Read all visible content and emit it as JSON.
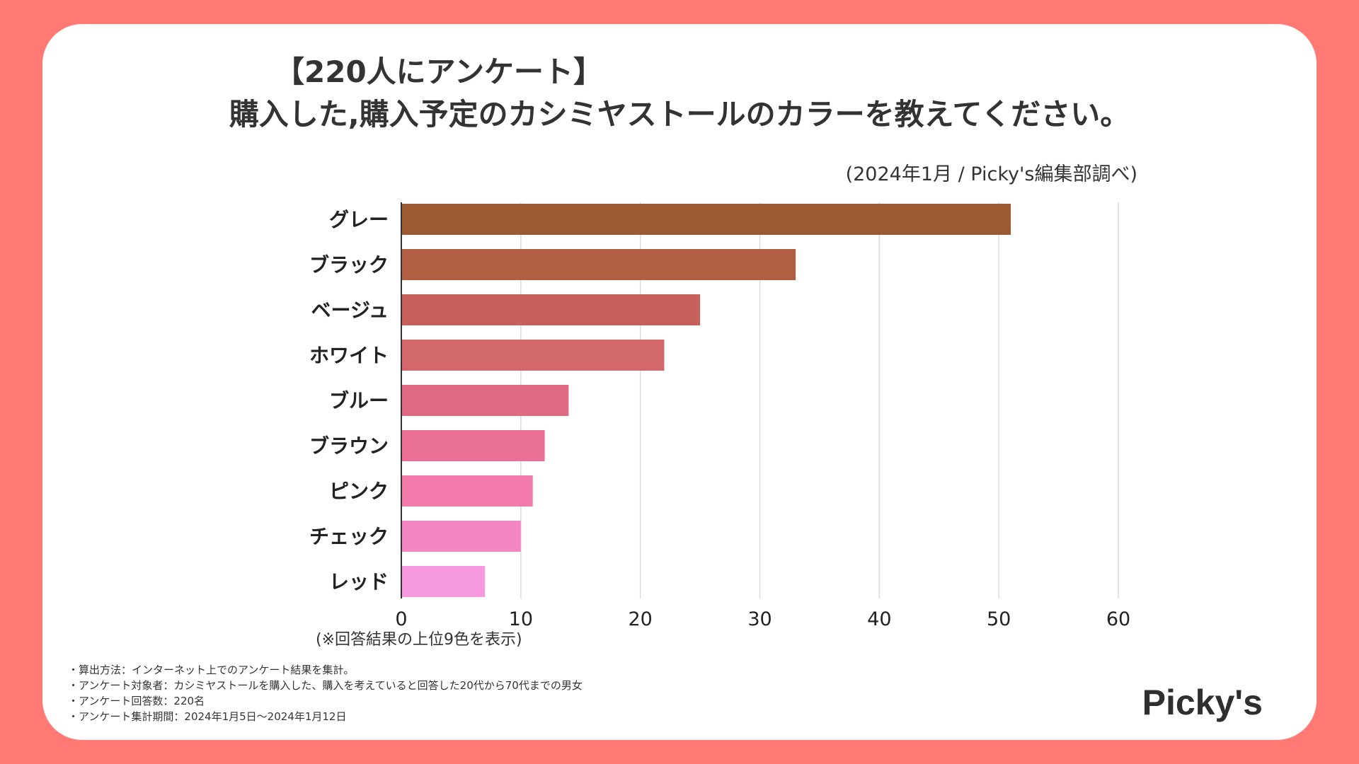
{
  "title": {
    "line1": "【220人にアンケート】",
    "line2": "購入した,購入予定のカシミヤストールのカラーを教えてください。"
  },
  "source": "(2024年1月 / Picky's編集部調べ)",
  "note": "(※回答結果の上位9色を表示)",
  "method": [
    "・算出方法：インターネット上でのアンケート結果を集計。",
    "・アンケート対象者：カシミヤストールを購入した、購入を考えていると回答した20代から70代までの男女",
    "・アンケート回答数：220名",
    "・アンケート集計期間：2024年1月5日〜2024年1月12日"
  ],
  "logo": "Picky's",
  "chart_data": {
    "type": "bar",
    "orientation": "horizontal",
    "categories": [
      "グレー",
      "ブラック",
      "ベージュ",
      "ホワイト",
      "ブルー",
      "ブラウン",
      "ピンク",
      "チェック",
      "レッド"
    ],
    "values": [
      51,
      33,
      25,
      22,
      14,
      12,
      11,
      10,
      7
    ],
    "bar_colors": [
      "#9b5a32",
      "#b05f43",
      "#c6605a",
      "#d2686a",
      "#df6a81",
      "#e97092",
      "#f27aaa",
      "#f586c4",
      "#f799de"
    ],
    "xlim": [
      0,
      60
    ],
    "xticks": [
      0,
      10,
      20,
      30,
      40,
      50,
      60
    ],
    "grid": true
  }
}
